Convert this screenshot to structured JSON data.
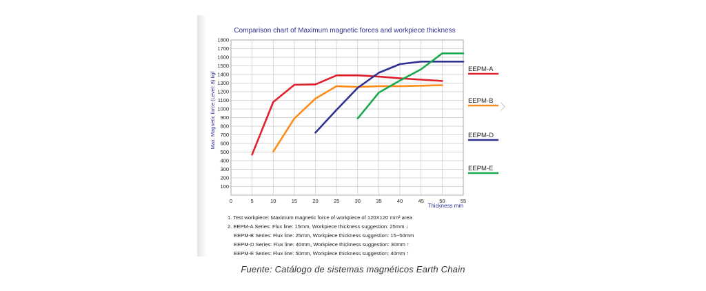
{
  "chart_data": {
    "type": "line",
    "title": "Comparison chart of Maximum magnetic forces and workpiece thickness",
    "xlabel": "Thickness  mm",
    "ylabel": "Max. Magnetic force (Level: 8) kgf",
    "xlim": [
      0,
      55
    ],
    "ylim": [
      0,
      1800
    ],
    "x_ticks": [
      0,
      5,
      10,
      15,
      20,
      25,
      30,
      35,
      40,
      45,
      50,
      55
    ],
    "y_ticks": [
      100,
      200,
      300,
      400,
      500,
      600,
      700,
      800,
      900,
      1000,
      1100,
      1200,
      1300,
      1400,
      1500,
      1600,
      1700,
      1800
    ],
    "grid": true,
    "legend_position": "right",
    "series": [
      {
        "name": "EEPM-A",
        "color": "#e0202a",
        "points": [
          [
            5,
            470
          ],
          [
            10,
            1080
          ],
          [
            15,
            1280
          ],
          [
            20,
            1285
          ],
          [
            25,
            1390
          ],
          [
            30,
            1390
          ],
          [
            35,
            1375
          ],
          [
            40,
            1355
          ],
          [
            45,
            1340
          ],
          [
            50,
            1325
          ]
        ]
      },
      {
        "name": "EEPM-B",
        "color": "#ff8c1a",
        "points": [
          [
            10,
            505
          ],
          [
            15,
            890
          ],
          [
            20,
            1120
          ],
          [
            25,
            1265
          ],
          [
            30,
            1255
          ],
          [
            35,
            1265
          ],
          [
            40,
            1265
          ],
          [
            45,
            1270
          ],
          [
            50,
            1275
          ]
        ]
      },
      {
        "name": "EEPM-D",
        "color": "#2e3192",
        "points": [
          [
            20,
            725
          ],
          [
            25,
            990
          ],
          [
            30,
            1245
          ],
          [
            35,
            1420
          ],
          [
            40,
            1520
          ],
          [
            45,
            1550
          ],
          [
            50,
            1550
          ],
          [
            55,
            1550
          ]
        ]
      },
      {
        "name": "EEPM-E",
        "color": "#1aa84e",
        "points": [
          [
            30,
            890
          ],
          [
            35,
            1190
          ],
          [
            40,
            1330
          ],
          [
            45,
            1460
          ],
          [
            50,
            1645
          ],
          [
            55,
            1645
          ]
        ]
      }
    ]
  },
  "notes": [
    "1. Test workpiece: Maximum magnetic force of workpiece of 120X120 mm² area",
    "2. EEPM-A Series: Flux line: 15mm, Workpiece thickness suggestion: 25mm ↓",
    "EEPM-B Series: Flux line: 25mm, Workpiece thickness suggestion: 15~50mm",
    "EEPM-D Series: Flux line: 40mm, Workpiece thickness suggestion: 30mm ↑",
    "EEPM-E Series: Flux line: 50mm, Workpiece thickness suggestion: 40mm ↑"
  ],
  "caption": "Fuente: Catálogo de sistemas magnéticos Earth Chain"
}
